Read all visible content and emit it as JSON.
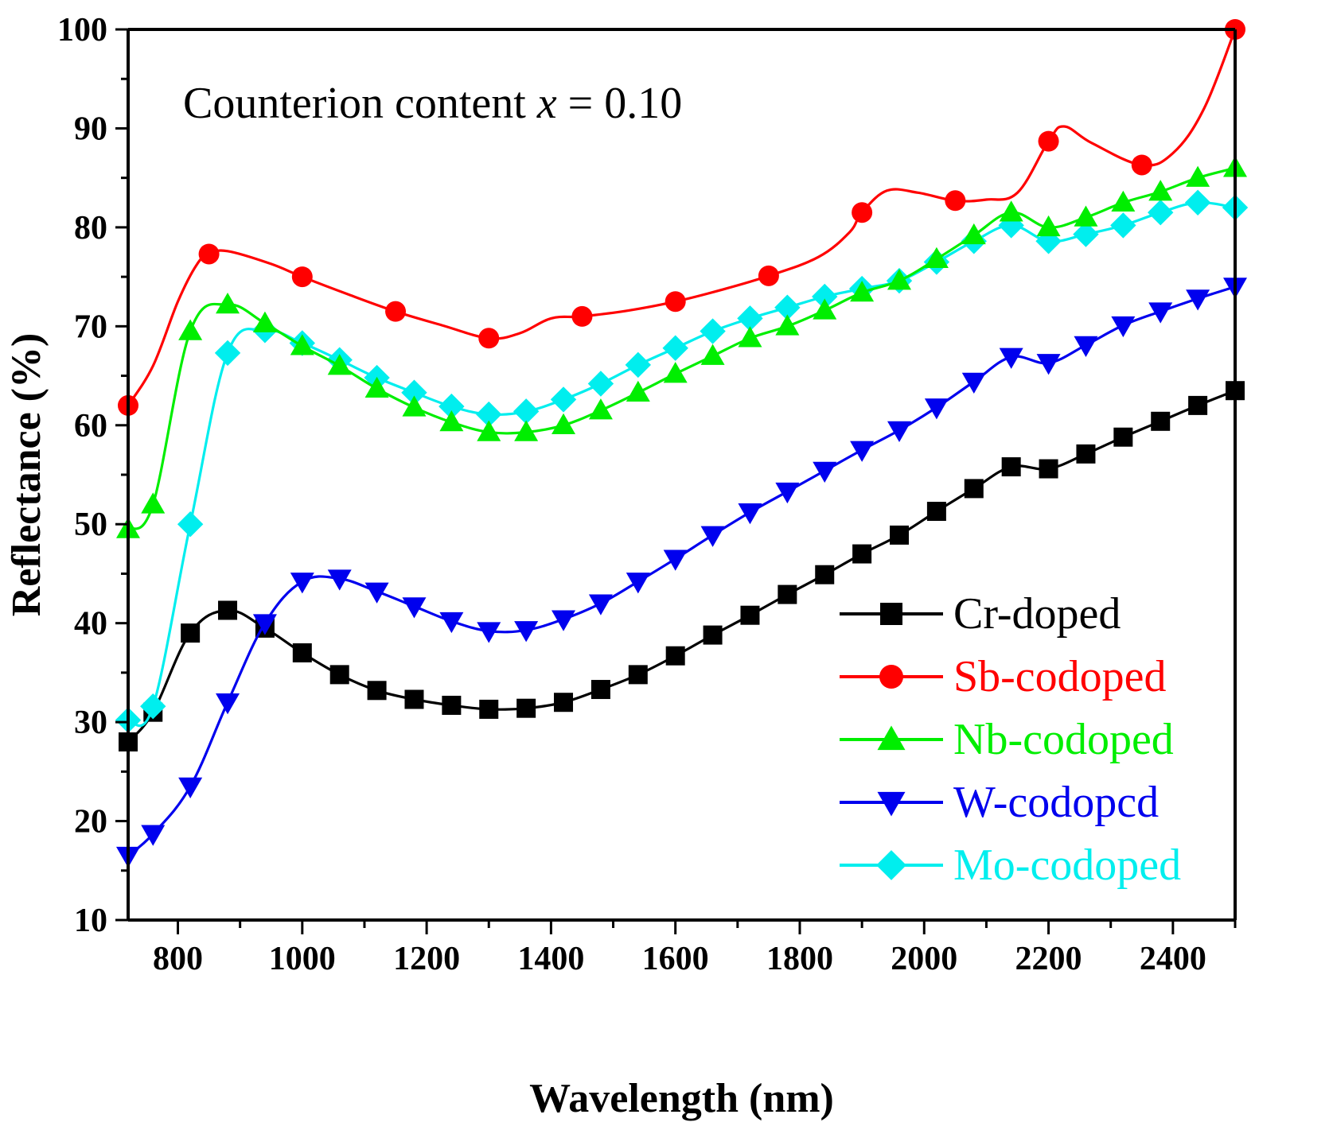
{
  "chart_data": {
    "type": "line",
    "title": "",
    "xlabel": "Wavelength (nm)",
    "ylabel": "Reflectance (%)",
    "xlim": [
      720,
      2500
    ],
    "ylim": [
      10,
      100
    ],
    "xticks": [
      800,
      1000,
      1200,
      1400,
      1600,
      1800,
      2000,
      2200,
      2400
    ],
    "yticks": [
      10,
      20,
      30,
      40,
      50,
      60,
      70,
      80,
      90,
      100
    ],
    "annotation": {
      "prefix": "Counterion content ",
      "variable": "x",
      "suffix": " = 0.10"
    },
    "legend_position": "bottom-right",
    "series": [
      {
        "name": "Cr-doped",
        "color": "#000000",
        "marker": "square",
        "x": [
          720,
          760,
          820,
          880,
          940,
          1000,
          1060,
          1120,
          1180,
          1240,
          1300,
          1360,
          1420,
          1480,
          1540,
          1600,
          1660,
          1720,
          1780,
          1840,
          1900,
          1960,
          2020,
          2080,
          2140,
          2200,
          2260,
          2320,
          2380,
          2440,
          2500
        ],
        "y": [
          28,
          31,
          39,
          41.3,
          39.5,
          37,
          34.8,
          33.2,
          32.3,
          31.7,
          31.3,
          31.4,
          32,
          33.3,
          34.8,
          36.7,
          38.8,
          40.8,
          42.9,
          44.9,
          47,
          48.9,
          51.3,
          53.6,
          55.8,
          55.6,
          57.1,
          58.8,
          60.4,
          62,
          63.5
        ]
      },
      {
        "name": "Sb-codoped",
        "color": "#ff0000",
        "marker": "circle",
        "x": [
          720,
          850,
          1000,
          1150,
          1300,
          1450,
          1600,
          1750,
          1900,
          2050,
          2200,
          2350,
          2500
        ],
        "y": [
          62,
          77.3,
          75,
          71.5,
          68.8,
          71,
          72.5,
          75.1,
          81.5,
          82.7,
          88.7,
          86.3,
          100
        ],
        "curve_x": [
          720,
          760,
          800,
          830,
          850,
          880,
          950,
          1000,
          1075,
          1150,
          1225,
          1300,
          1350,
          1400,
          1450,
          1525,
          1600,
          1675,
          1750,
          1830,
          1880,
          1900,
          1940,
          1990,
          2050,
          2100,
          2150,
          2200,
          2225,
          2270,
          2350,
          2400,
          2450,
          2500
        ],
        "curve_y": [
          62,
          66,
          72.5,
          76.2,
          77.3,
          77.6,
          76.3,
          75,
          73.2,
          71.5,
          70.1,
          68.8,
          69.3,
          70.8,
          71,
          71.6,
          72.5,
          73.7,
          75.1,
          77,
          79.5,
          81.5,
          83.7,
          83.5,
          82.7,
          82.8,
          83.5,
          88.7,
          90.2,
          88.5,
          86.3,
          87.5,
          92,
          100
        ]
      },
      {
        "name": "Nb-codoped",
        "color": "#00ee00",
        "marker": "triangle-up",
        "x": [
          720,
          760,
          820,
          880,
          940,
          1000,
          1060,
          1120,
          1180,
          1240,
          1300,
          1360,
          1420,
          1480,
          1540,
          1600,
          1660,
          1720,
          1780,
          1840,
          1900,
          1960,
          2020,
          2080,
          2140,
          2200,
          2260,
          2320,
          2380,
          2440,
          2500
        ],
        "y": [
          49.5,
          52,
          69.5,
          72.2,
          70.3,
          68,
          66,
          63.7,
          61.8,
          60.3,
          59.3,
          59.3,
          60,
          61.5,
          63.3,
          65.2,
          67,
          68.8,
          70,
          71.6,
          73.4,
          74.6,
          76.8,
          79.2,
          81.5,
          80,
          81,
          82.5,
          83.6,
          85,
          86
        ]
      },
      {
        "name": "W-codopcd",
        "color": "#0000ee",
        "marker": "triangle-down",
        "x": [
          720,
          760,
          820,
          880,
          940,
          1000,
          1060,
          1120,
          1180,
          1240,
          1300,
          1360,
          1420,
          1480,
          1540,
          1600,
          1660,
          1720,
          1780,
          1840,
          1900,
          1960,
          2020,
          2080,
          2140,
          2200,
          2260,
          2320,
          2380,
          2440,
          2500
        ],
        "y": [
          16.5,
          18.7,
          23.5,
          32,
          40,
          44.2,
          44.5,
          43.2,
          41.7,
          40.2,
          39.2,
          39.3,
          40.4,
          42,
          44.2,
          46.5,
          48.9,
          51.2,
          53.3,
          55.4,
          57.5,
          59.5,
          61.8,
          64.4,
          66.9,
          66.3,
          68.1,
          70.1,
          71.5,
          72.8,
          74
        ]
      },
      {
        "name": "Mo-codoped",
        "color": "#00eeee",
        "marker": "diamond",
        "x": [
          720,
          760,
          820,
          880,
          940,
          1000,
          1060,
          1120,
          1180,
          1240,
          1300,
          1360,
          1420,
          1480,
          1540,
          1600,
          1660,
          1720,
          1780,
          1840,
          1900,
          1960,
          2020,
          2080,
          2140,
          2200,
          2260,
          2320,
          2380,
          2440,
          2500
        ],
        "y": [
          30.2,
          31.6,
          50,
          67.3,
          69.6,
          68.3,
          66.6,
          64.8,
          63.3,
          61.9,
          61.1,
          61.4,
          62.6,
          64.2,
          66.1,
          67.8,
          69.5,
          70.8,
          71.9,
          73,
          73.8,
          74.6,
          76.5,
          78.6,
          80.2,
          78.6,
          79.3,
          80.2,
          81.5,
          82.5,
          82
        ]
      }
    ]
  }
}
